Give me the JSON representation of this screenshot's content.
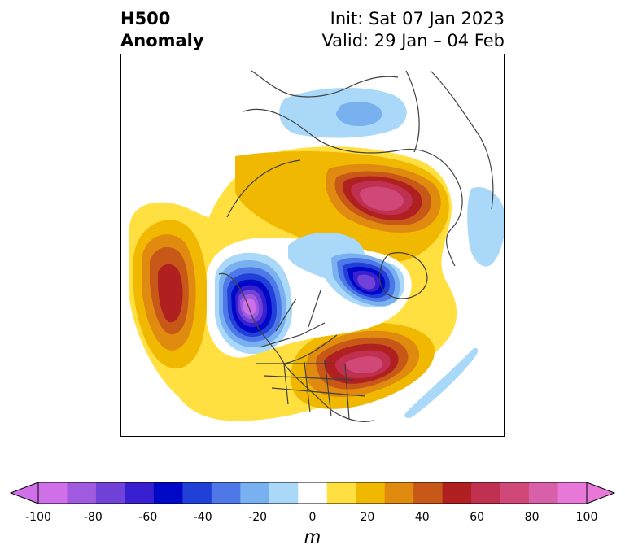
{
  "header": {
    "title_line1": "H500",
    "title_line2": "Anomaly",
    "init_text": "Init: Sat 07 Jan 2023",
    "valid_text": "Valid: 29 Jan – 04 Feb"
  },
  "colorbar": {
    "unit": "m",
    "tick_labels": [
      "-100",
      "-80",
      "-60",
      "-40",
      "-20",
      "0",
      "20",
      "40",
      "60",
      "80",
      "100"
    ],
    "levels": [
      -100,
      -90,
      -80,
      -70,
      -60,
      -50,
      -40,
      -30,
      -20,
      -10,
      10,
      20,
      30,
      40,
      50,
      60,
      70,
      80,
      90,
      100
    ],
    "colors": [
      "#d070e8",
      "#a05ae0",
      "#7042d8",
      "#3820d0",
      "#0008c8",
      "#2040d8",
      "#4e78e8",
      "#78b0f0",
      "#aad8f8",
      "#ffffff",
      "#ffe040",
      "#f0b800",
      "#e08a10",
      "#c85818",
      "#b02020",
      "#c03050",
      "#d04878",
      "#d860a8",
      "#e878d8"
    ],
    "extend_low_color": "#d070e8",
    "extend_high_color": "#e878d8"
  },
  "map": {
    "projection": "polar-stereographic-north",
    "features": [
      {
        "name": "ridge-north-pacific",
        "sign": "positive",
        "peak_m": 60
      },
      {
        "name": "trough-western-north-america",
        "sign": "negative",
        "peak_m": -100
      },
      {
        "name": "trough-arctic-canada",
        "sign": "negative",
        "peak_m": -70
      },
      {
        "name": "ridge-eastern-north-america",
        "sign": "positive",
        "peak_m": 80
      },
      {
        "name": "ridge-northern-eurasia",
        "sign": "positive",
        "peak_m": 80
      },
      {
        "name": "trough-north-africa",
        "sign": "negative",
        "peak_m": -30
      },
      {
        "name": "trough-east-asia",
        "sign": "negative",
        "peak_m": -20
      },
      {
        "name": "trough-central-atlantic",
        "sign": "negative",
        "peak_m": -20
      }
    ]
  }
}
